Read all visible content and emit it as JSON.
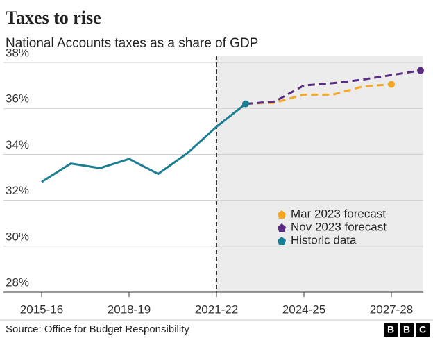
{
  "chart_data": {
    "type": "line",
    "title": "Taxes to rise",
    "subtitle": "National Accounts taxes as a share of GDP",
    "source": "Source: Office for Budget Responsibility",
    "logo": [
      "B",
      "B",
      "C"
    ],
    "categories": [
      "2015-16",
      null,
      null,
      "2018-19",
      null,
      null,
      "2021-22",
      null,
      null,
      "2024-25",
      null,
      null,
      "2027-28",
      null
    ],
    "series": [
      {
        "name": "Mar 2023 forecast",
        "color": "#f5a623",
        "dashed": true,
        "values": [
          null,
          null,
          null,
          null,
          null,
          null,
          null,
          36.2,
          36.25,
          36.6,
          36.6,
          36.95,
          37.05,
          null
        ]
      },
      {
        "name": "Nov 2023 forecast",
        "color": "#5a2d82",
        "dashed": true,
        "values": [
          null,
          null,
          null,
          null,
          null,
          null,
          null,
          36.2,
          36.3,
          37.0,
          37.1,
          37.25,
          37.45,
          37.65
        ]
      },
      {
        "name": "Historic data",
        "color": "#1b7e93",
        "dashed": false,
        "values": [
          32.8,
          33.6,
          33.4,
          33.8,
          33.15,
          34.05,
          35.2,
          36.2,
          null,
          null,
          null,
          null,
          null,
          null
        ]
      }
    ],
    "ylim": [
      28,
      38
    ],
    "yticks": [
      {
        "value": 28,
        "label": "28%"
      },
      {
        "value": 30,
        "label": "30%"
      },
      {
        "value": 32,
        "label": "32%"
      },
      {
        "value": 34,
        "label": "34%"
      },
      {
        "value": 36,
        "label": "36%"
      },
      {
        "value": 38,
        "label": "38%"
      }
    ],
    "grid": true
  }
}
